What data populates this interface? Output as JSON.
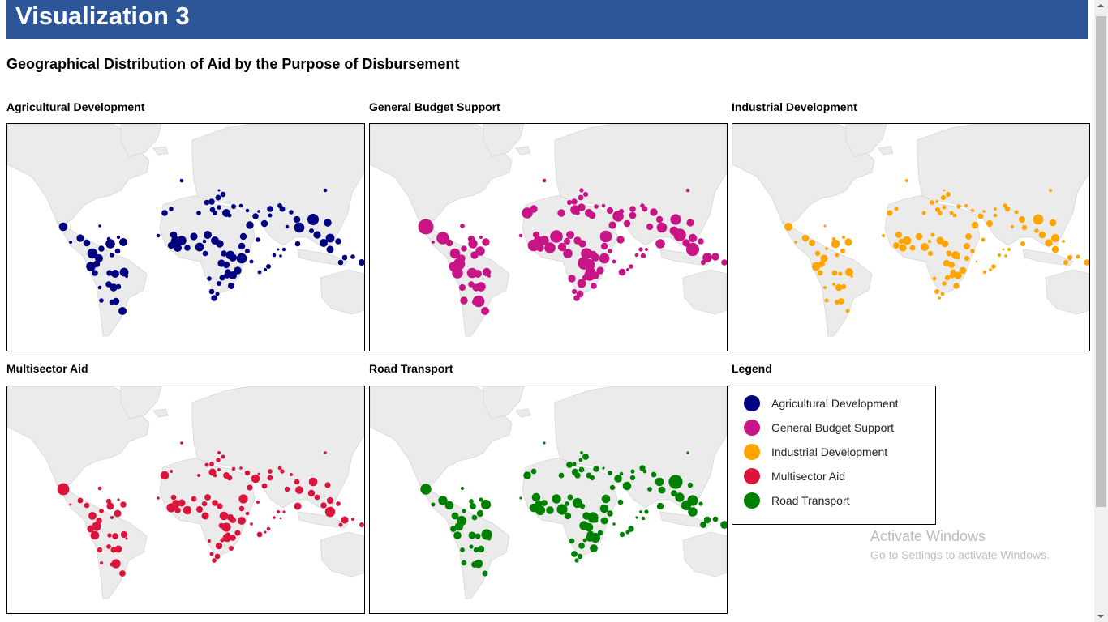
{
  "header": {
    "title": "Visualization 3"
  },
  "subtitle": "Geographical Distribution of Aid by the Purpose of Disbursement",
  "panels": [
    {
      "title": "Agricultural Development",
      "color": "#000080"
    },
    {
      "title": "General Budget Support",
      "color": "#c71585"
    },
    {
      "title": "Industrial Development",
      "color": "#ffa500"
    },
    {
      "title": "Multisector Aid",
      "color": "#dc143c"
    },
    {
      "title": "Road Transport",
      "color": "#008000"
    }
  ],
  "legend": {
    "title": "Legend",
    "items": [
      {
        "label": "Agricultural Development",
        "color": "#000080"
      },
      {
        "label": "General Budget Support",
        "color": "#c71585"
      },
      {
        "label": "Industrial Development",
        "color": "#ffa500"
      },
      {
        "label": "Multisector Aid",
        "color": "#dc143c"
      },
      {
        "label": "Road Transport",
        "color": "#008000"
      }
    ]
  },
  "watermark": {
    "line1": "Activate Windows",
    "line2": "Go to Settings to activate Windows."
  },
  "chart_data": {
    "type": "bubble-map",
    "title": "Geographical Distribution of Aid by the Purpose of Disbursement",
    "projection": "mercator world map, recipient-country bubbles sized by aid amount",
    "series": [
      {
        "name": "Agricultural Development",
        "color": "#000080",
        "points": [
          [
            69,
            127,
            7
          ],
          [
            90,
            141,
            5
          ],
          [
            98,
            147,
            4
          ],
          [
            105,
            160,
            5
          ],
          [
            110,
            173,
            5
          ],
          [
            113,
            166,
            5
          ],
          [
            103,
            176,
            5
          ],
          [
            108,
            184,
            5
          ],
          [
            126,
            184,
            4
          ],
          [
            144,
            183,
            5
          ],
          [
            133,
            185,
            4
          ],
          [
            136,
            157,
            4
          ],
          [
            143,
            146,
            5
          ],
          [
            127,
            148,
            5
          ],
          [
            125,
            142,
            3
          ],
          [
            129,
            162,
            3
          ],
          [
            137,
            140,
            2
          ],
          [
            116,
            154,
            3
          ],
          [
            114,
            126,
            2
          ],
          [
            78,
            146,
            2
          ],
          [
            186,
            138,
            2
          ],
          [
            194,
            110,
            5
          ],
          [
            202,
            105,
            3
          ],
          [
            205,
            137,
            4
          ],
          [
            208,
            145,
            5
          ],
          [
            202,
            150,
            5
          ],
          [
            210,
            153,
            5
          ],
          [
            215,
            144,
            5
          ],
          [
            222,
            153,
            5
          ],
          [
            230,
            139,
            5
          ],
          [
            237,
            152,
            5
          ],
          [
            247,
            137,
            4
          ],
          [
            244,
            160,
            4
          ],
          [
            256,
            144,
            5
          ],
          [
            262,
            148,
            4
          ],
          [
            267,
            160,
            5
          ],
          [
            264,
            172,
            5
          ],
          [
            275,
            162,
            5
          ],
          [
            278,
            165,
            4
          ],
          [
            270,
            174,
            5
          ],
          [
            278,
            187,
            5
          ],
          [
            265,
            190,
            3
          ],
          [
            261,
            197,
            4
          ],
          [
            272,
            183,
            4
          ],
          [
            289,
            151,
            4
          ],
          [
            289,
            166,
            5
          ],
          [
            291,
            139,
            5
          ],
          [
            296,
            157,
            3
          ],
          [
            299,
            125,
            4
          ],
          [
            306,
            114,
            5
          ],
          [
            310,
            108,
            2
          ],
          [
            317,
            123,
            4
          ],
          [
            324,
            105,
            3
          ],
          [
            324,
            113,
            3
          ],
          [
            336,
            101,
            3
          ],
          [
            339,
            105,
            3
          ],
          [
            345,
            127,
            3
          ],
          [
            350,
            109,
            3
          ],
          [
            357,
            118,
            4
          ],
          [
            360,
            128,
            5
          ],
          [
            358,
            148,
            4
          ],
          [
            377,
            118,
            7
          ],
          [
            395,
            122,
            4
          ],
          [
            375,
            132,
            4
          ],
          [
            382,
            137,
            5
          ],
          [
            398,
            141,
            5
          ],
          [
            408,
            145,
            3
          ],
          [
            416,
            165,
            4
          ],
          [
            437,
            171,
            4
          ],
          [
            215,
            70,
            2
          ],
          [
            243,
            145,
            3
          ],
          [
            249,
            191,
            3
          ],
          [
            252,
            207,
            3
          ],
          [
            255,
            215,
            3
          ],
          [
            259,
            210,
            3
          ],
          [
            276,
            200,
            4
          ],
          [
            284,
            181,
            4
          ],
          [
            271,
            187,
            5
          ],
          [
            236,
            110,
            3
          ],
          [
            246,
            97,
            3
          ],
          [
            252,
            96,
            3
          ],
          [
            253,
            106,
            4
          ],
          [
            256,
            110,
            3
          ],
          [
            260,
            91,
            3
          ],
          [
            261,
            82,
            2
          ],
          [
            261,
            103,
            3
          ],
          [
            266,
            87,
            3
          ],
          [
            270,
            110,
            4
          ],
          [
            274,
            113,
            3
          ],
          [
            279,
            102,
            3
          ],
          [
            288,
            101,
            2
          ],
          [
            296,
            107,
            3
          ],
          [
            309,
            143,
            3
          ],
          [
            318,
            180,
            2
          ],
          [
            301,
            170,
            2
          ],
          [
            311,
            183,
            3
          ],
          [
            322,
            176,
            3
          ],
          [
            329,
            162,
            2
          ],
          [
            334,
            155,
            2
          ],
          [
            337,
            163,
            2
          ],
          [
            341,
            155,
            2
          ],
          [
            125,
            198,
            3
          ],
          [
            137,
            201,
            4
          ],
          [
            147,
            188,
            2
          ],
          [
            131,
            202,
            4
          ],
          [
            114,
            202,
            3
          ],
          [
            116,
            218,
            3
          ],
          [
            129,
            220,
            3
          ],
          [
            142,
            231,
            4
          ],
          [
            134,
            219,
            5
          ],
          [
            390,
            147,
            5
          ],
          [
            392,
            82,
            2
          ],
          [
            398,
            155,
            6
          ],
          [
            426,
            164,
            3
          ],
          [
            411,
            171,
            3
          ]
        ]
      },
      {
        "name": "General Budget Support",
        "color": "#c71585"
      },
      {
        "name": "Industrial Development",
        "color": "#ffa500"
      },
      {
        "name": "Multisector Aid",
        "color": "#dc143c"
      },
      {
        "name": "Road Transport",
        "color": "#008000"
      }
    ],
    "legend_position": "separate panel, bottom-right"
  }
}
